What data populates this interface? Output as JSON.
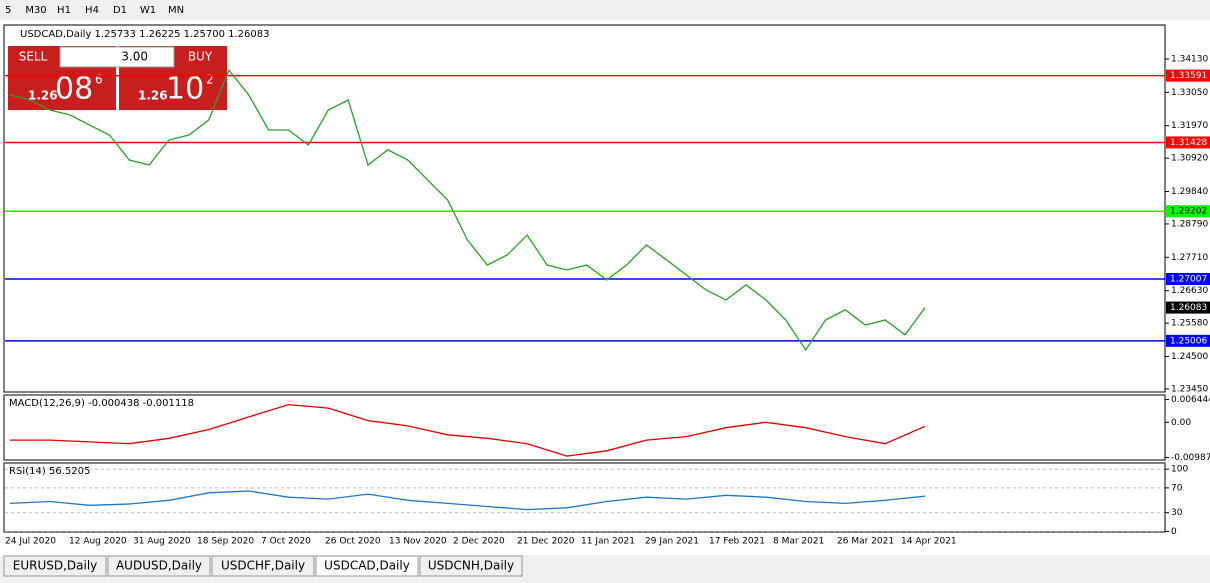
{
  "toolbar": {
    "timeframes": [
      "5",
      "M30",
      "H1",
      "H4",
      "D1",
      "W1",
      "MN"
    ]
  },
  "chart": {
    "header": "USDCAD,Daily  1.25733 1.26225 1.25700 1.26083",
    "lot": "3.00",
    "sell": {
      "label": "SELL",
      "big": "1.26",
      "main": "08",
      "sup": "6"
    },
    "buy": {
      "label": "BUY",
      "big": "1.26",
      "main": "10",
      "sup": "2"
    },
    "ylim": [
      1.2335,
      1.3523
    ],
    "yticks": [
      {
        "value": 1.3413,
        "label": "1.34130"
      },
      {
        "value": 1.3305,
        "label": "1.33050"
      },
      {
        "value": 1.3197,
        "label": "1.31970"
      },
      {
        "value": 1.3092,
        "label": "1.30920"
      },
      {
        "value": 1.2984,
        "label": "1.29840"
      },
      {
        "value": 1.2879,
        "label": "1.28790"
      },
      {
        "value": 1.2771,
        "label": "1.27710"
      },
      {
        "value": 1.2663,
        "label": "1.26630"
      },
      {
        "value": 1.2558,
        "label": "1.25580"
      },
      {
        "value": 1.245,
        "label": "1.24500"
      },
      {
        "value": 1.2345,
        "label": "1.23450"
      }
    ],
    "levels": [
      {
        "value": 1.33591,
        "label": "1.33591",
        "color": "#ff0000"
      },
      {
        "value": 1.31428,
        "label": "1.31428",
        "color": "#ff0000"
      },
      {
        "value": 1.29202,
        "label": "1.29202",
        "color": "#00ff00"
      },
      {
        "value": 1.27007,
        "label": "1.27007",
        "color": "#0000ff"
      },
      {
        "value": 1.25006,
        "label": "1.25006",
        "color": "#0000ff"
      }
    ],
    "current": {
      "value": 1.26083,
      "label": "1.26083"
    },
    "closes": [
      1.3297,
      1.328,
      1.3248,
      1.3232,
      1.3199,
      1.3167,
      1.3086,
      1.307,
      1.3151,
      1.3167,
      1.3216,
      1.3377,
      1.3297,
      1.3183,
      1.3183,
      1.3135,
      1.3248,
      1.328,
      1.307,
      1.3119,
      1.3086,
      1.3021,
      1.2957,
      1.2827,
      1.2746,
      1.2779,
      1.2843,
      1.2746,
      1.273,
      1.2746,
      1.2698,
      1.2746,
      1.2811,
      1.2763,
      1.2714,
      1.2665,
      1.2633,
      1.2682,
      1.2633,
      1.2568,
      1.2471,
      1.2568,
      1.2601,
      1.2552,
      1.2568,
      1.252,
      1.2608
    ],
    "dates": [
      "24 Jul 2020",
      "12 Aug 2020",
      "31 Aug 2020",
      "18 Sep 2020",
      "7 Oct 2020",
      "26 Oct 2020",
      "13 Nov 2020",
      "2 Dec 2020",
      "21 Dec 2020",
      "11 Jan 2021",
      "29 Jan 2021",
      "17 Feb 2021",
      "8 Mar 2021",
      "26 Mar 2021",
      "14 Apr 2021"
    ]
  },
  "macd": {
    "label": "MACD(12,26,9) -0.000438 -0.001118",
    "ylim": [
      -0.0106,
      0.0077
    ],
    "yticks": [
      0.006444,
      {
        "value": 0,
        "label": "0.00"
      },
      -0.009871
    ],
    "signal": [
      -0.005,
      -0.005,
      -0.0055,
      -0.006,
      -0.0045,
      -0.002,
      0.0015,
      0.005,
      0.004,
      0.0005,
      -0.001,
      -0.0035,
      -0.0045,
      -0.006,
      -0.0095,
      -0.008,
      -0.005,
      -0.004,
      -0.0015,
      0,
      -0.0015,
      -0.004,
      -0.006,
      -0.001118
    ]
  },
  "rsi": {
    "label": "RSI(14) 56.5205",
    "ylim": [
      -1,
      110
    ],
    "yticks": [
      100,
      70,
      30,
      0
    ],
    "values": [
      45,
      48,
      42,
      44,
      50,
      62,
      65,
      55,
      52,
      60,
      50,
      45,
      40,
      35,
      38,
      48,
      55,
      52,
      58,
      55,
      48,
      45,
      50,
      56.5205
    ]
  },
  "tabs": [
    "EURUSD,Daily",
    "AUDUSD,Daily",
    "USDCHF,Daily",
    "USDCAD,Daily",
    "USDCNH,Daily"
  ],
  "active_tab": 3
}
